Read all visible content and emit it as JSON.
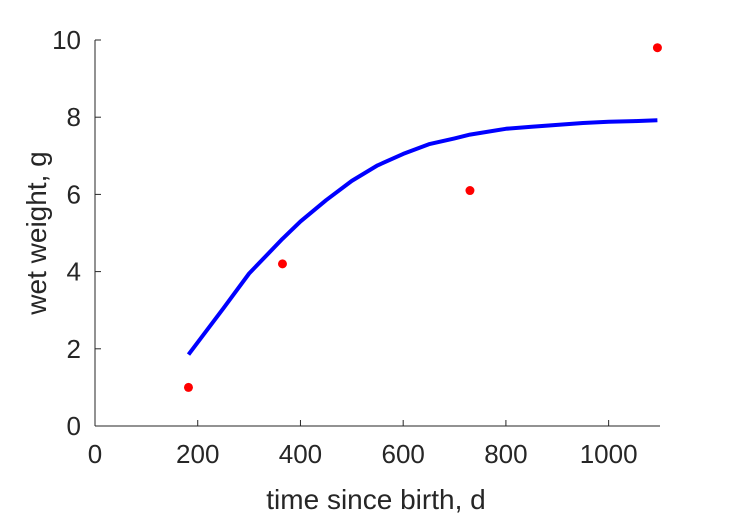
{
  "chart_data": {
    "type": "scatter",
    "title": "",
    "xlabel": "time since birth, d",
    "ylabel": "wet weight, g",
    "xlim": [
      0,
      1100
    ],
    "ylim": [
      0,
      10
    ],
    "xticks": [
      0,
      200,
      400,
      600,
      800,
      1000
    ],
    "yticks": [
      0,
      2,
      4,
      6,
      8,
      10
    ],
    "grid": false,
    "series": [
      {
        "kind": "scatter",
        "color": "#ff0000",
        "x": [
          182,
          365,
          730,
          1095
        ],
        "y": [
          1.0,
          4.2,
          6.1,
          9.8
        ]
      },
      {
        "kind": "line",
        "color": "#0000ff",
        "x": [
          182,
          250,
          300,
          365,
          400,
          450,
          500,
          550,
          600,
          650,
          700,
          730,
          800,
          850,
          900,
          950,
          1000,
          1050,
          1095
        ],
        "y": [
          1.85,
          3.05,
          3.95,
          4.85,
          5.3,
          5.85,
          6.35,
          6.75,
          7.05,
          7.3,
          7.45,
          7.55,
          7.7,
          7.75,
          7.8,
          7.85,
          7.88,
          7.9,
          7.92
        ]
      }
    ]
  }
}
